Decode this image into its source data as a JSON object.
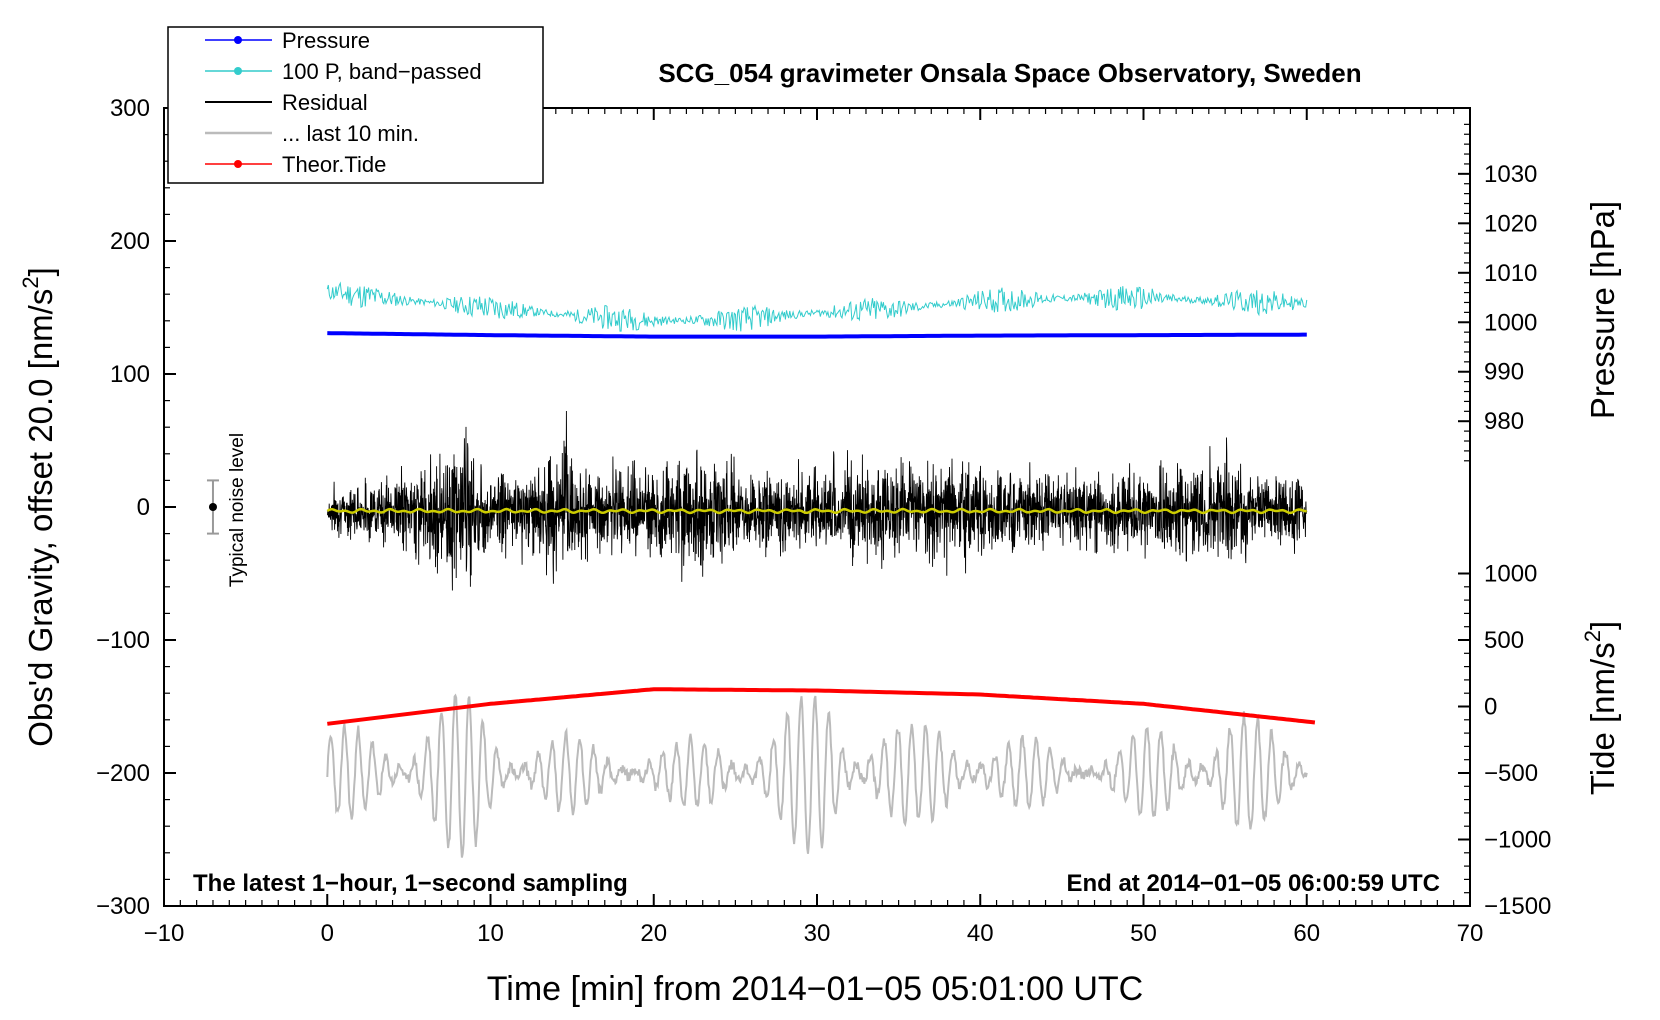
{
  "chart_data": {
    "type": "line",
    "title": "SCG_054 gravimeter Onsala Space Observatory, Sweden",
    "xlabel": "Time [min] from 2014−01−05 05:01:00 UTC",
    "ylabel_main": "Obs'd Gravity, offset 20.0 [nm/s",
    "ylabel_main_sup": "2",
    "ylabel_main_close": "]",
    "ylabel_pressure": "Pressure [hPa]",
    "ylabel_tide": "Tide [nm/s",
    "ylabel_tide_sup": "2",
    "ylabel_tide_close": "]",
    "xlim": [
      -10,
      70
    ],
    "ylim": [
      -300,
      300
    ],
    "x_ticks": [
      {
        "value": -10,
        "label": "−10"
      },
      {
        "value": 0,
        "label": "0"
      },
      {
        "value": 10,
        "label": "10"
      },
      {
        "value": 20,
        "label": "20"
      },
      {
        "value": 30,
        "label": "30"
      },
      {
        "value": 40,
        "label": "40"
      },
      {
        "value": 50,
        "label": "50"
      },
      {
        "value": 60,
        "label": "60"
      },
      {
        "value": 70,
        "label": "70"
      }
    ],
    "y_ticks": [
      {
        "value": 300,
        "label": "300"
      },
      {
        "value": 200,
        "label": "200"
      },
      {
        "value": 100,
        "label": "100"
      },
      {
        "value": 0,
        "label": "0"
      },
      {
        "value": -100,
        "label": "−100"
      },
      {
        "value": -200,
        "label": "−200"
      },
      {
        "value": -300,
        "label": "−300"
      }
    ],
    "pressure_axis": {
      "ticks": [
        {
          "value": 1030,
          "label": "1030"
        },
        {
          "value": 1020,
          "label": "1020"
        },
        {
          "value": 1010,
          "label": "1010"
        },
        {
          "value": 1000,
          "label": "1000"
        },
        {
          "value": 990,
          "label": "990"
        },
        {
          "value": 980,
          "label": "980"
        }
      ],
      "main_equiv_at_1000": 138.9,
      "main_units_per_hPa": 3.72
    },
    "tide_axis": {
      "ticks": [
        {
          "value": 1000,
          "label": "1000"
        },
        {
          "value": 500,
          "label": "500"
        },
        {
          "value": 0,
          "label": "0"
        },
        {
          "value": -500,
          "label": "−500"
        },
        {
          "value": -1000,
          "label": "−1000"
        },
        {
          "value": -1500,
          "label": "−1500"
        }
      ],
      "main_equiv_at_0": -150,
      "main_units_per_tide": 0.1
    },
    "legend": {
      "position": "top-left",
      "entries": [
        {
          "label": "Pressure",
          "color": "#0000ff",
          "marker": true
        },
        {
          "label": "100 P, band−passed",
          "color": "#33cccc",
          "marker": true
        },
        {
          "label": "Residual",
          "color": "#000000",
          "marker": false
        },
        {
          "label": "... last 10 min.",
          "color": "#bbbbbb",
          "marker": false
        },
        {
          "label": "Theor.Tide",
          "color": "#ff0000",
          "marker": true
        }
      ]
    },
    "series": [
      {
        "name": "Pressure",
        "axis": "pressure",
        "color": "#0000ff",
        "x": [
          0,
          10,
          20,
          30,
          40,
          50,
          60
        ],
        "values": [
          997.8,
          997.4,
          997.1,
          997.1,
          997.3,
          997.4,
          997.5
        ]
      },
      {
        "name": "100 P, band-passed",
        "axis": "main",
        "color": "#33cccc",
        "baseline": [
          [
            0,
            162
          ],
          [
            5,
            155
          ],
          [
            10,
            150
          ],
          [
            15,
            144
          ],
          [
            20,
            140
          ],
          [
            25,
            141
          ],
          [
            30,
            146
          ],
          [
            35,
            149
          ],
          [
            40,
            155
          ],
          [
            45,
            157
          ],
          [
            50,
            157
          ],
          [
            55,
            155
          ],
          [
            60,
            153
          ]
        ],
        "amplitude": 6,
        "noise_seed": 11
      },
      {
        "name": "Residual",
        "axis": "main",
        "color": "#000000",
        "noise_seed": 7,
        "envelope": [
          [
            0,
            25
          ],
          [
            5,
            45
          ],
          [
            8.5,
            95
          ],
          [
            10,
            45
          ],
          [
            13,
            60
          ],
          [
            14.5,
            90
          ],
          [
            16,
            45
          ],
          [
            20,
            55
          ],
          [
            22,
            70
          ],
          [
            23.5,
            95
          ],
          [
            25,
            45
          ],
          [
            30,
            50
          ],
          [
            32,
            60
          ],
          [
            36,
            55
          ],
          [
            38,
            60
          ],
          [
            41,
            55
          ],
          [
            45,
            50
          ],
          [
            50,
            45
          ],
          [
            55,
            75
          ],
          [
            57,
            45
          ],
          [
            60,
            40
          ]
        ]
      },
      {
        "name": "Residual smoothed",
        "axis": "main",
        "color": "#cccc00",
        "level": -3,
        "amplitude": 1.5
      },
      {
        "name": "... last 10 min.",
        "axis": "main",
        "color": "#bbbbbb",
        "offset": -200,
        "envelope": [
          [
            0,
            30
          ],
          [
            3,
            40
          ],
          [
            6,
            55
          ],
          [
            9,
            65
          ],
          [
            12,
            35
          ],
          [
            15,
            30
          ],
          [
            18,
            20
          ],
          [
            22,
            25
          ],
          [
            26,
            40
          ],
          [
            29,
            55
          ],
          [
            31,
            85
          ],
          [
            33,
            55
          ],
          [
            36,
            35
          ],
          [
            39,
            55
          ],
          [
            41,
            30
          ],
          [
            44,
            25
          ],
          [
            47,
            15
          ],
          [
            50,
            35
          ],
          [
            53,
            45
          ],
          [
            55,
            60
          ],
          [
            57,
            40
          ],
          [
            60,
            20
          ]
        ],
        "noise_seed": 23
      },
      {
        "name": "Theor.Tide",
        "axis": "tide",
        "color": "#ff0000",
        "x": [
          0,
          10,
          20,
          30,
          40,
          50,
          60.5
        ],
        "values": [
          -130,
          20,
          130,
          120,
          90,
          20,
          -120
        ]
      }
    ],
    "noise_bar": {
      "label": "Typical noise level",
      "x": -7,
      "low": -20,
      "high": 20
    },
    "annotations": {
      "left": "The latest 1−hour, 1−second sampling",
      "right": "End at 2014−01−05 06:00:59 UTC"
    }
  }
}
